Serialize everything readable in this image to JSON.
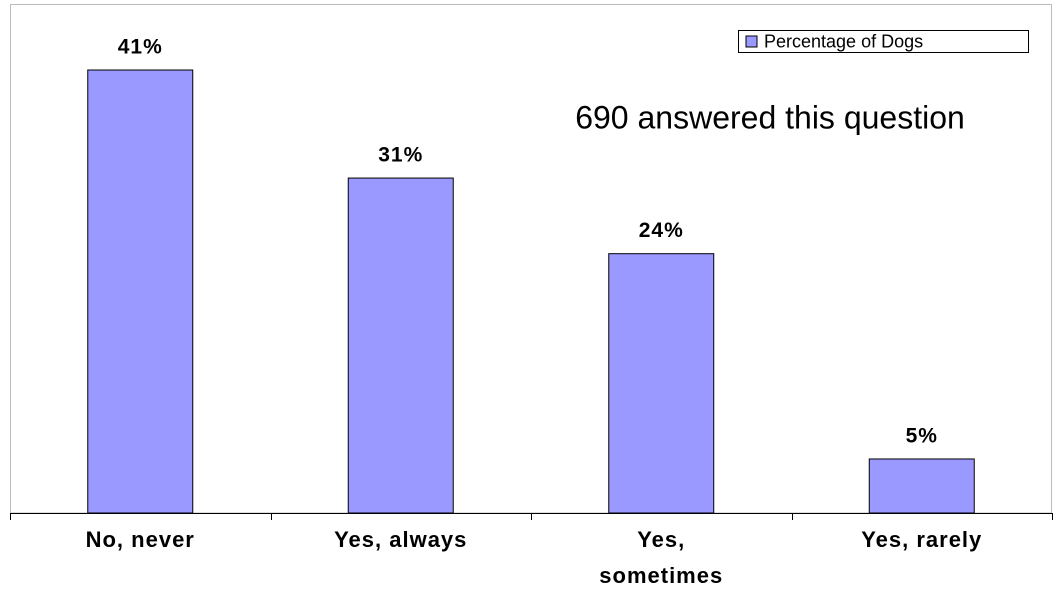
{
  "chart_data": {
    "type": "bar",
    "categories": [
      "No, never",
      "Yes, always",
      "Yes, sometimes",
      "Yes, rarely"
    ],
    "series": [
      {
        "name": "Percentage of Dogs",
        "color": "#9999ff",
        "values": [
          41,
          31,
          24,
          5
        ],
        "value_labels": [
          "41%",
          "31%",
          "24%",
          "5%"
        ]
      }
    ],
    "annotation": "690 answered this question",
    "legend": "upper right"
  }
}
